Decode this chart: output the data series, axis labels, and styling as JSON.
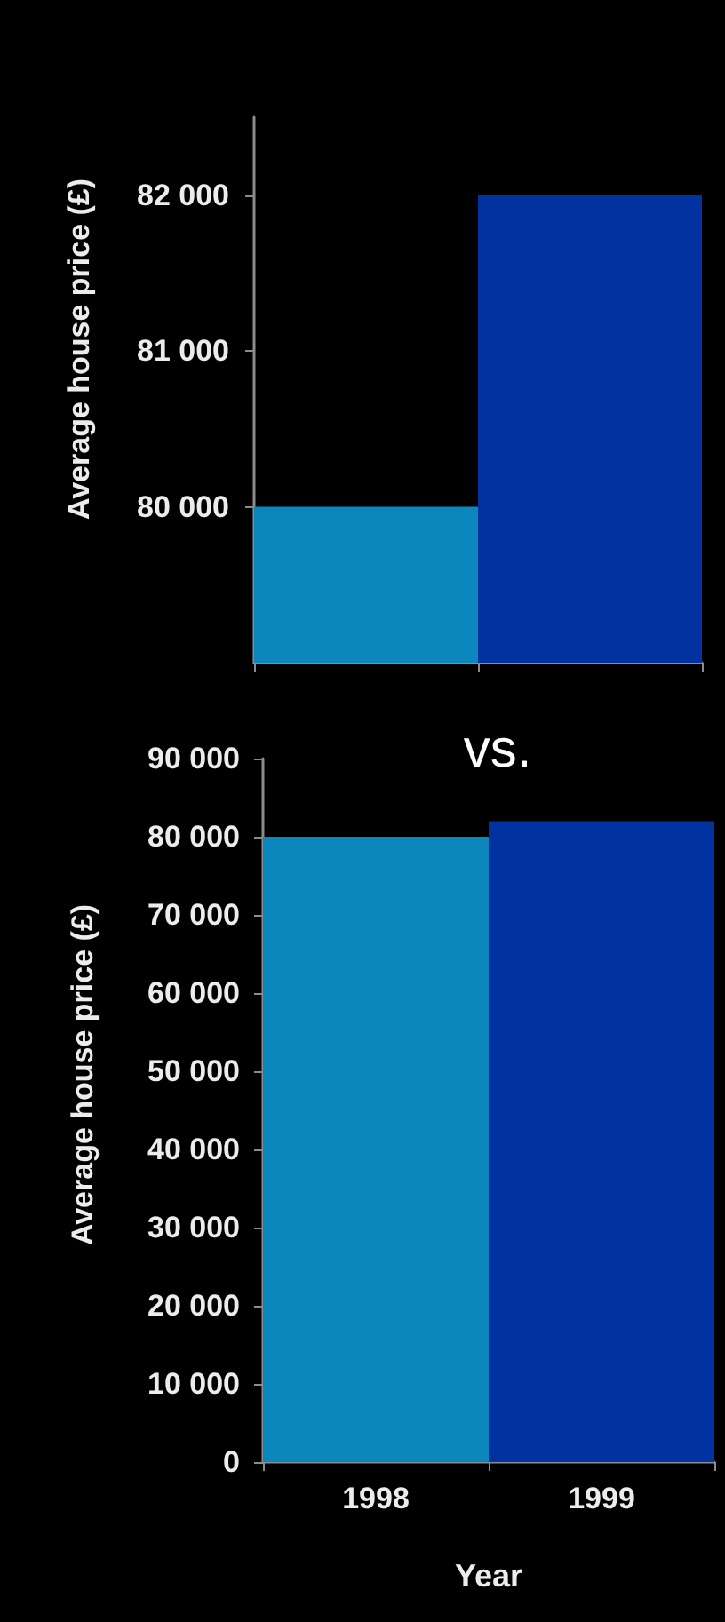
{
  "chart_data": [
    {
      "type": "bar",
      "ylabel": "Average house price (£)",
      "categories": [
        null,
        null
      ],
      "values": [
        80000,
        82000
      ],
      "colors": [
        "#0b87be",
        "#0232a0"
      ],
      "ylim": [
        79000,
        82500
      ],
      "yticks": [
        {
          "value": 80000,
          "label": "80 000"
        },
        {
          "value": 81000,
          "label": "81 000"
        },
        {
          "value": 82000,
          "label": "82 000"
        }
      ],
      "tick_labels": "y"
    },
    {
      "type": "bar",
      "xlabel": "Year",
      "ylabel": "Average house price (£)",
      "categories": [
        "1998",
        "1999"
      ],
      "values": [
        80000,
        82000
      ],
      "colors": [
        "#0b87be",
        "#0232a0"
      ],
      "ylim": [
        0,
        90000
      ],
      "yticks": [
        0,
        {
          "value": 10000,
          "label": "10 000"
        },
        {
          "value": 20000,
          "label": "20 000"
        },
        {
          "value": 30000,
          "label": "30 000"
        },
        {
          "value": 40000,
          "label": "40 000"
        },
        {
          "value": 50000,
          "label": "50 000"
        },
        {
          "value": 60000,
          "label": "60 000"
        },
        {
          "value": 70000,
          "label": "70 000"
        },
        {
          "value": 80000,
          "label": "80 000"
        },
        {
          "value": 90000,
          "label": "90 000"
        }
      ],
      "annotations": [
        "vs."
      ]
    }
  ]
}
